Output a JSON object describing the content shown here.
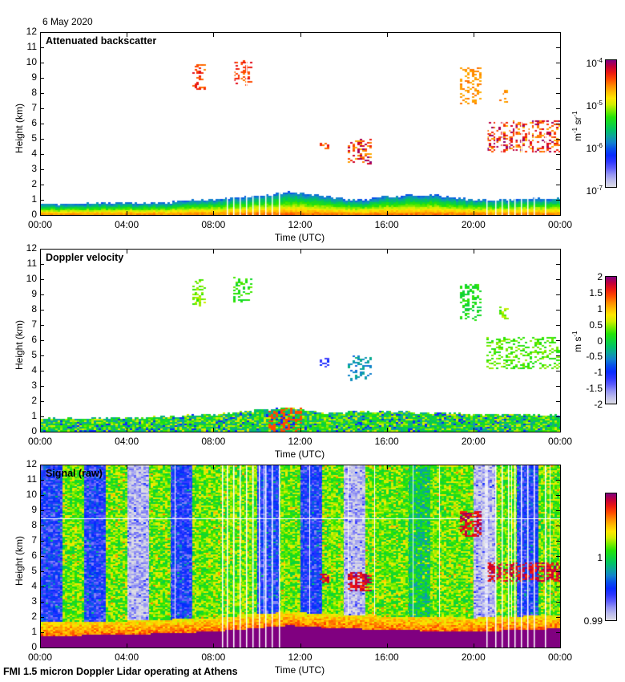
{
  "figure": {
    "date": "6 May 2020",
    "footer": "FMI 1.5 micron Doppler Lidar operating at Athens"
  },
  "chart_data": [
    {
      "type": "heatmap",
      "title": "Attenuated backscatter",
      "xlabel": "Time (UTC)",
      "ylabel": "Height (km)",
      "xlim": [
        "00:00",
        "24:00"
      ],
      "ylim": [
        0,
        12
      ],
      "x_ticks": [
        "00:00",
        "04:00",
        "08:00",
        "12:00",
        "16:00",
        "20:00",
        "00:00"
      ],
      "y_ticks": [
        "0",
        "1",
        "2",
        "3",
        "4",
        "5",
        "6",
        "7",
        "8",
        "9",
        "10",
        "11",
        "12"
      ],
      "colorbar": {
        "scale": "log",
        "range": [
          1e-07,
          0.0001
        ],
        "ticks": [
          {
            "value": 0.0001,
            "base": "10",
            "exp": "-4"
          },
          {
            "value": 1e-05,
            "base": "10",
            "exp": "-5"
          },
          {
            "value": 1e-06,
            "base": "10",
            "exp": "-6"
          },
          {
            "value": 1e-07,
            "base": "10",
            "exp": "-7"
          }
        ],
        "unit_parts": [
          {
            "base": "m",
            "exp": "-1"
          },
          {
            "base": " sr",
            "exp": "-1"
          }
        ]
      },
      "features": [
        {
          "kind": "boundary-layer",
          "t_start_h": 0,
          "t_end_h": 24,
          "top_km_profile": [
            [
              0,
              0.75
            ],
            [
              2,
              0.8
            ],
            [
              4,
              0.85
            ],
            [
              6,
              0.9
            ],
            [
              8,
              1.1
            ],
            [
              10,
              1.3
            ],
            [
              11.5,
              1.55
            ],
            [
              12.5,
              1.45
            ],
            [
              14,
              1.1
            ],
            [
              15,
              1.0
            ],
            [
              16,
              1.3
            ],
            [
              18,
              1.4
            ],
            [
              19.5,
              1.1
            ],
            [
              21,
              1.05
            ],
            [
              24,
              1.15
            ]
          ]
        },
        {
          "kind": "cloud",
          "t_start_h": 7.0,
          "t_end_h": 7.6,
          "z_bottom_km": 8.3,
          "z_top_km": 10.0,
          "intensity": "high"
        },
        {
          "kind": "cloud",
          "t_start_h": 8.9,
          "t_end_h": 9.7,
          "z_bottom_km": 8.6,
          "z_top_km": 10.2,
          "intensity": "high"
        },
        {
          "kind": "cloud",
          "t_start_h": 12.9,
          "t_end_h": 13.3,
          "z_bottom_km": 4.3,
          "z_top_km": 4.9,
          "intensity": "high"
        },
        {
          "kind": "cloud",
          "t_start_h": 14.2,
          "t_end_h": 15.3,
          "z_bottom_km": 3.4,
          "z_top_km": 5.0,
          "intensity": "very-high"
        },
        {
          "kind": "cloud",
          "t_start_h": 19.4,
          "t_end_h": 20.3,
          "z_bottom_km": 7.4,
          "z_top_km": 9.8,
          "intensity": "medium"
        },
        {
          "kind": "cloud",
          "t_start_h": 21.2,
          "t_end_h": 21.6,
          "z_bottom_km": 7.5,
          "z_top_km": 8.3,
          "intensity": "medium"
        },
        {
          "kind": "cloud",
          "t_start_h": 20.6,
          "t_end_h": 24.0,
          "z_bottom_km": 4.2,
          "z_top_km": 6.3,
          "intensity": "very-high"
        }
      ],
      "missing_data_times_h": [
        8.6,
        8.9,
        9.2,
        9.5,
        9.8,
        10.1,
        10.4,
        10.7,
        11.0,
        20.6,
        21.0,
        21.3,
        21.6,
        21.9,
        22.2,
        22.5,
        22.8,
        23.3
      ]
    },
    {
      "type": "heatmap",
      "title": "Doppler velocity",
      "xlabel": "Time (UTC)",
      "ylabel": "Height (km)",
      "xlim": [
        "00:00",
        "24:00"
      ],
      "ylim": [
        0,
        12
      ],
      "x_ticks": [
        "00:00",
        "04:00",
        "08:00",
        "12:00",
        "16:00",
        "20:00",
        "00:00"
      ],
      "y_ticks": [
        "0",
        "1",
        "2",
        "3",
        "4",
        "5",
        "6",
        "7",
        "8",
        "9",
        "10",
        "11",
        "12"
      ],
      "colorbar": {
        "scale": "linear",
        "range": [
          -2,
          2
        ],
        "ticks": [
          "2",
          "1.5",
          "1",
          "0.5",
          "0",
          "-0.5",
          "-1",
          "-1.5",
          "-2"
        ],
        "unit_parts": [
          {
            "base": "m s",
            "exp": "-1"
          }
        ]
      },
      "features": [
        {
          "kind": "boundary-layer",
          "t_start_h": 0,
          "t_end_h": 24,
          "velocity_ms": "mixed -1 to 1.5",
          "top_km_profile": [
            [
              0,
              0.9
            ],
            [
              4,
              0.95
            ],
            [
              8,
              1.2
            ],
            [
              11.5,
              1.65
            ],
            [
              13,
              1.3
            ],
            [
              16,
              1.4
            ],
            [
              20,
              1.2
            ],
            [
              24,
              1.15
            ]
          ]
        },
        {
          "kind": "cloud",
          "t_start_h": 7.0,
          "t_end_h": 7.6,
          "z_bottom_km": 8.3,
          "z_top_km": 10.0,
          "velocity_ms": 0.4
        },
        {
          "kind": "cloud",
          "t_start_h": 8.9,
          "t_end_h": 9.7,
          "z_bottom_km": 8.6,
          "z_top_km": 10.2,
          "velocity_ms": 0.2
        },
        {
          "kind": "cloud",
          "t_start_h": 12.9,
          "t_end_h": 13.3,
          "z_bottom_km": 4.3,
          "z_top_km": 4.9,
          "velocity_ms": -1.2
        },
        {
          "kind": "cloud",
          "t_start_h": 14.2,
          "t_end_h": 15.3,
          "z_bottom_km": 3.4,
          "z_top_km": 5.0,
          "velocity_ms": -0.5
        },
        {
          "kind": "cloud",
          "t_start_h": 19.4,
          "t_end_h": 20.3,
          "z_bottom_km": 7.4,
          "z_top_km": 9.8,
          "velocity_ms": 0.1
        },
        {
          "kind": "cloud",
          "t_start_h": 21.2,
          "t_end_h": 21.6,
          "z_bottom_km": 7.5,
          "z_top_km": 8.3,
          "velocity_ms": 0.4
        },
        {
          "kind": "cloud",
          "t_start_h": 20.6,
          "t_end_h": 24.0,
          "z_bottom_km": 4.2,
          "z_top_km": 6.3,
          "velocity_ms": 0.3
        }
      ]
    },
    {
      "type": "heatmap",
      "title": "Signal (raw)",
      "xlabel": "Time (UTC)",
      "ylabel": "Height (km)",
      "xlim": [
        "00:00",
        "24:00"
      ],
      "ylim": [
        0,
        12
      ],
      "x_ticks": [
        "00:00",
        "04:00",
        "08:00",
        "12:00",
        "16:00",
        "20:00",
        "00:00"
      ],
      "y_ticks": [
        "0",
        "1",
        "2",
        "3",
        "4",
        "5",
        "6",
        "7",
        "8",
        "9",
        "10",
        "11",
        "12"
      ],
      "colorbar": {
        "scale": "linear",
        "range": [
          0.99,
          1.01
        ],
        "ticks": [
          "1",
          "0.99"
        ],
        "unit_parts": []
      },
      "background_bands": [
        {
          "t_start_h": 0.0,
          "t_end_h": 1.0,
          "level": "blue"
        },
        {
          "t_start_h": 1.0,
          "t_end_h": 2.0,
          "level": "green"
        },
        {
          "t_start_h": 2.0,
          "t_end_h": 3.0,
          "level": "blue"
        },
        {
          "t_start_h": 3.0,
          "t_end_h": 4.0,
          "level": "green"
        },
        {
          "t_start_h": 4.0,
          "t_end_h": 5.0,
          "level": "grey"
        },
        {
          "t_start_h": 5.0,
          "t_end_h": 6.0,
          "level": "green"
        },
        {
          "t_start_h": 6.0,
          "t_end_h": 7.0,
          "level": "blue"
        },
        {
          "t_start_h": 7.0,
          "t_end_h": 10.0,
          "level": "green"
        },
        {
          "t_start_h": 10.0,
          "t_end_h": 11.0,
          "level": "blue"
        },
        {
          "t_start_h": 11.0,
          "t_end_h": 12.0,
          "level": "green"
        },
        {
          "t_start_h": 12.0,
          "t_end_h": 13.0,
          "level": "blue"
        },
        {
          "t_start_h": 13.0,
          "t_end_h": 14.0,
          "level": "green"
        },
        {
          "t_start_h": 14.0,
          "t_end_h": 15.0,
          "level": "grey"
        },
        {
          "t_start_h": 15.0,
          "t_end_h": 17.0,
          "level": "green"
        },
        {
          "t_start_h": 17.0,
          "t_end_h": 18.0,
          "level": "teal"
        },
        {
          "t_start_h": 18.0,
          "t_end_h": 20.0,
          "level": "green"
        },
        {
          "t_start_h": 20.0,
          "t_end_h": 21.0,
          "level": "grey"
        },
        {
          "t_start_h": 21.0,
          "t_end_h": 22.0,
          "level": "green"
        },
        {
          "t_start_h": 22.0,
          "t_end_h": 23.0,
          "level": "blue"
        },
        {
          "t_start_h": 23.0,
          "t_end_h": 24.0,
          "level": "green"
        }
      ],
      "features": [
        {
          "kind": "near-surface-saturation",
          "t_start_h": 0,
          "t_end_h": 24,
          "top_km_profile": [
            [
              0,
              0.8
            ],
            [
              4,
              0.9
            ],
            [
              8,
              1.1
            ],
            [
              11.5,
              1.5
            ],
            [
              12.5,
              1.4
            ],
            [
              16,
              1.2
            ],
            [
              20,
              1.1
            ],
            [
              24,
              1.3
            ]
          ]
        },
        {
          "kind": "cloud",
          "t_start_h": 12.9,
          "t_end_h": 13.3,
          "z_bottom_km": 4.3,
          "z_top_km": 4.9
        },
        {
          "kind": "cloud",
          "t_start_h": 14.2,
          "t_end_h": 15.3,
          "z_bottom_km": 3.8,
          "z_top_km": 5.0
        },
        {
          "kind": "cloud",
          "t_start_h": 19.4,
          "t_end_h": 20.3,
          "z_bottom_km": 7.4,
          "z_top_km": 9.0
        },
        {
          "kind": "cloud",
          "t_start_h": 20.6,
          "t_end_h": 24.0,
          "z_bottom_km": 4.4,
          "z_top_km": 5.6
        }
      ],
      "missing_data_times_h": [
        8.4,
        8.6,
        8.9,
        9.2,
        9.5,
        9.8,
        10.1,
        10.4,
        10.7,
        11.0,
        20.6,
        21.0,
        21.3,
        21.6,
        21.9,
        22.2,
        22.5,
        22.8,
        23.3
      ]
    }
  ]
}
